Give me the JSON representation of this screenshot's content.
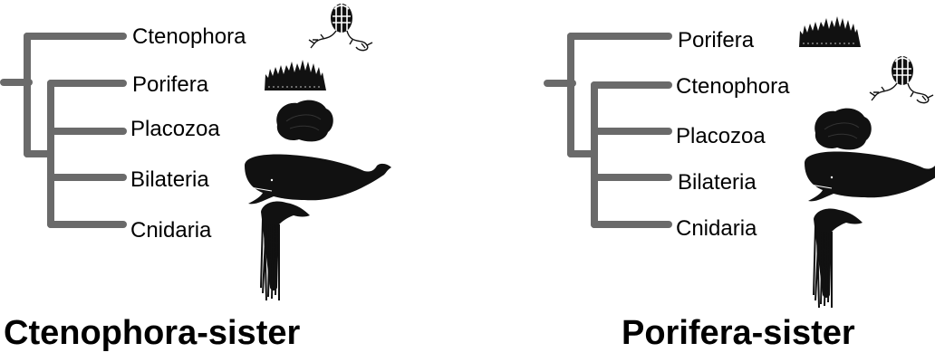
{
  "left_tree": {
    "title": "Ctenophora-sister",
    "taxa": [
      "Ctenophora",
      "Porifera",
      "Placozoa",
      "Bilateria",
      "Cnidaria"
    ],
    "icons": [
      "comb-jelly-icon",
      "sponge-icon",
      "placozoan-icon",
      "sperm-whale-icon",
      "hydra-icon"
    ]
  },
  "right_tree": {
    "title": "Porifera-sister",
    "taxa": [
      "Porifera",
      "Ctenophora",
      "Placozoa",
      "Bilateria",
      "Cnidaria"
    ],
    "icons": [
      "sponge-icon",
      "comb-jelly-icon",
      "placozoan-icon",
      "sperm-whale-icon",
      "hydra-icon"
    ]
  },
  "colors": {
    "branch": "#6a6a6a",
    "text": "#000000",
    "silhouette": "#0a0a0a"
  }
}
